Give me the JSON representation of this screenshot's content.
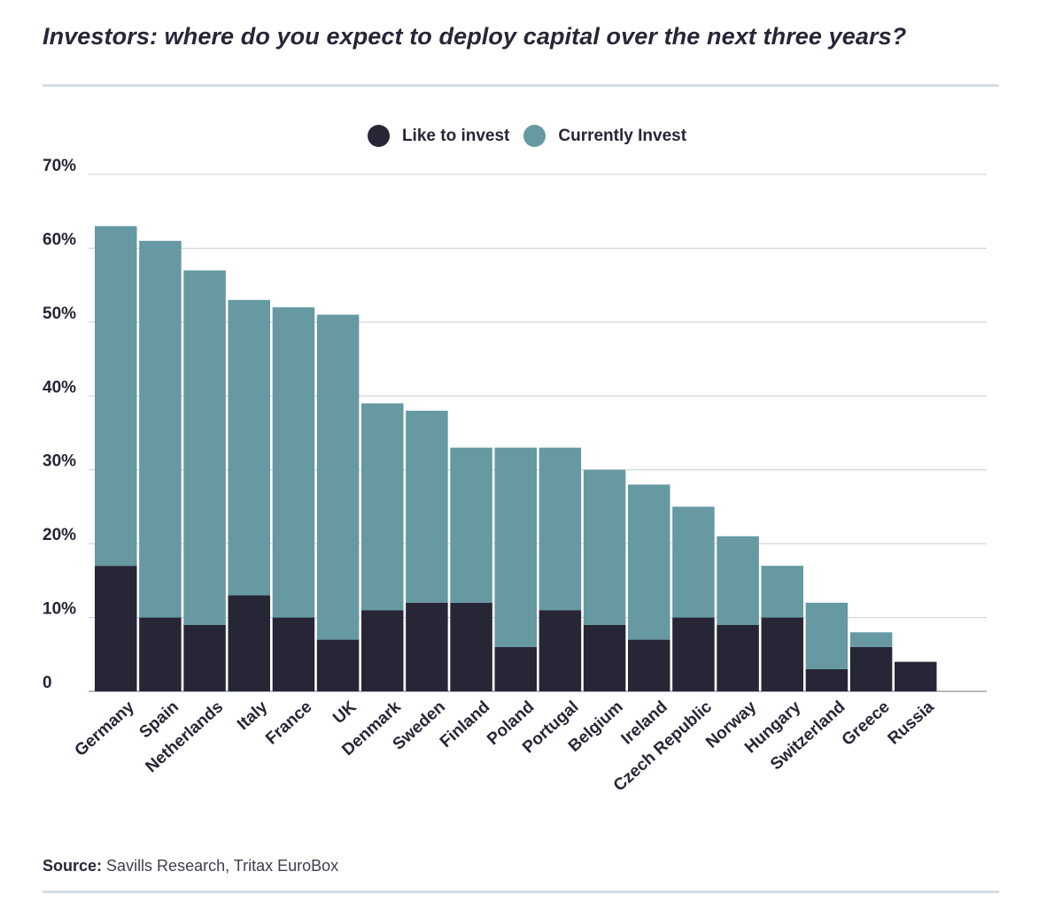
{
  "title": "Investors: where do you expect to deploy capital over the next three years?",
  "legend": {
    "like": {
      "label": "Like to invest",
      "color": "#262637"
    },
    "current": {
      "label": "Currently Invest",
      "color": "#6699a2"
    }
  },
  "source": {
    "label": "Source:",
    "text": "Savills Research, Tritax EuroBox"
  },
  "chart_data": {
    "type": "bar",
    "stacked": true,
    "categories": [
      "Germany",
      "Spain",
      "Netherlands",
      "Italy",
      "France",
      "UK",
      "Denmark",
      "Sweden",
      "Finland",
      "Poland",
      "Portugal",
      "Belgium",
      "Ireland",
      "Czech Republic",
      "Norway",
      "Hungary",
      "Switzerland",
      "Greece",
      "Russia"
    ],
    "series": [
      {
        "name": "Like to invest",
        "color": "#262637",
        "values": [
          17,
          10,
          9,
          13,
          10,
          7,
          11,
          12,
          12,
          6,
          11,
          9,
          7,
          10,
          9,
          10,
          3,
          6,
          4
        ]
      },
      {
        "name": "Currently Invest",
        "color": "#6699a2",
        "values": [
          46,
          51,
          48,
          40,
          42,
          44,
          28,
          26,
          21,
          27,
          22,
          21,
          21,
          15,
          12,
          7,
          9,
          2,
          0
        ]
      }
    ],
    "ylim": [
      0,
      70
    ],
    "yticks": [
      0,
      10,
      20,
      30,
      40,
      50,
      60,
      70
    ],
    "ytick_labels": [
      "0",
      "10%",
      "20%",
      "30%",
      "40%",
      "50%",
      "60%",
      "70%"
    ],
    "grid": true,
    "legend_position": "top-center"
  }
}
